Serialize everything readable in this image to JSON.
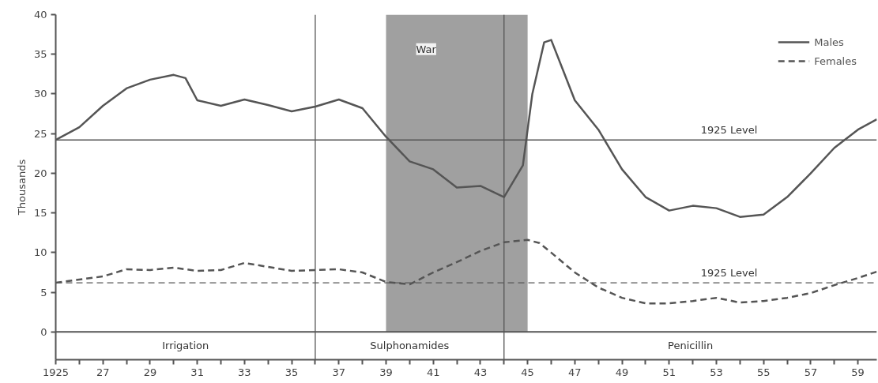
{
  "chart_data": {
    "type": "line",
    "ylabel": "Thousands",
    "xlim": [
      1925,
      1959.8
    ],
    "ylim": [
      -3.5,
      40
    ],
    "xticks": [
      1925,
      {
        "value": 1926,
        "label": null
      },
      {
        "value": 1927,
        "label": "27"
      },
      {
        "value": 1928,
        "label": null
      },
      {
        "value": 1929,
        "label": "29"
      },
      {
        "value": 1930,
        "label": null
      },
      {
        "value": 1931,
        "label": "31"
      },
      {
        "value": 1932,
        "label": null
      },
      {
        "value": 1933,
        "label": "33"
      },
      {
        "value": 1934,
        "label": null
      },
      {
        "value": 1935,
        "label": "35"
      },
      {
        "value": 1936,
        "label": null
      },
      {
        "value": 1937,
        "label": "37"
      },
      {
        "value": 1938,
        "label": null
      },
      {
        "value": 1939,
        "label": "39"
      },
      {
        "value": 1940,
        "label": null
      },
      {
        "value": 1941,
        "label": "41"
      },
      {
        "value": 1942,
        "label": null
      },
      {
        "value": 1943,
        "label": "43"
      },
      {
        "value": 1944,
        "label": null
      },
      {
        "value": 1945,
        "label": "45"
      },
      {
        "value": 1946,
        "label": null
      },
      {
        "value": 1947,
        "label": "47"
      },
      {
        "value": 1948,
        "label": null
      },
      {
        "value": 1949,
        "label": "49"
      },
      {
        "value": 1950,
        "label": null
      },
      {
        "value": 1951,
        "label": "51"
      },
      {
        "value": 1952,
        "label": null
      },
      {
        "value": 1953,
        "label": "53"
      },
      {
        "value": 1954,
        "label": null
      },
      {
        "value": 1955,
        "label": "55"
      },
      {
        "value": 1956,
        "label": null
      },
      {
        "value": 1957,
        "label": "57"
      },
      {
        "value": 1958,
        "label": null
      },
      {
        "value": 1959,
        "label": "59"
      }
    ],
    "yticks": [
      0,
      5,
      10,
      15,
      20,
      25,
      30,
      35,
      40
    ],
    "grid": false,
    "legend": "top right",
    "series": [
      {
        "name": "Males",
        "color": "#555555",
        "line_style": "solid",
        "x": [
          1925,
          1926,
          1927,
          1928,
          1929,
          1930,
          1930.5,
          1931,
          1932,
          1933,
          1934,
          1935,
          1936,
          1937,
          1938,
          1939,
          1940,
          1941,
          1942,
          1943,
          1944,
          1944.8,
          1945.2,
          1945.7,
          1946,
          1946.5,
          1947,
          1948,
          1949,
          1950,
          1951,
          1952,
          1953,
          1954,
          1955,
          1956,
          1957,
          1958,
          1959,
          1959.8
        ],
        "values": [
          24.2,
          25.8,
          28.5,
          30.7,
          31.8,
          32.4,
          32.0,
          29.2,
          28.5,
          29.3,
          28.6,
          27.8,
          28.4,
          29.3,
          28.2,
          24.6,
          21.5,
          20.5,
          18.2,
          18.4,
          17.0,
          21,
          30,
          36.5,
          36.8,
          33,
          29.2,
          25.5,
          20.5,
          17.0,
          15.3,
          15.9,
          15.6,
          14.5,
          14.8,
          17.0,
          20.0,
          23.2,
          25.5,
          26.8
        ]
      },
      {
        "name": "Females",
        "color": "#555555",
        "line_style": "dashed",
        "x": [
          1925,
          1926,
          1927,
          1928,
          1929,
          1930,
          1931,
          1932,
          1933,
          1934,
          1935,
          1936,
          1937,
          1938,
          1939,
          1940,
          1941,
          1942,
          1943,
          1944,
          1945,
          1945.5,
          1946,
          1947,
          1948,
          1949,
          1950,
          1951,
          1952,
          1953,
          1954,
          1955,
          1956,
          1957,
          1958,
          1959,
          1959.8
        ],
        "values": [
          6.2,
          6.6,
          7.0,
          7.9,
          7.8,
          8.1,
          7.7,
          7.8,
          8.7,
          8.2,
          7.7,
          7.8,
          7.9,
          7.5,
          6.3,
          6.0,
          7.5,
          8.8,
          10.2,
          11.3,
          11.6,
          11.2,
          10.0,
          7.5,
          5.6,
          4.3,
          3.6,
          3.6,
          3.9,
          4.3,
          3.7,
          3.9,
          4.3,
          4.9,
          5.9,
          6.8,
          7.6
        ]
      }
    ],
    "ref_lines": [
      {
        "axis": "y",
        "value": 24.2,
        "label": "1925 Level",
        "color": "#555555",
        "line_style": "solid"
      },
      {
        "axis": "y",
        "value": 6.2,
        "label": "1925 Level",
        "color": "#555555",
        "line_style": "dashed"
      },
      {
        "axis": "y",
        "value": 0,
        "color": "#555555",
        "line_style": "solid"
      },
      {
        "axis": "x",
        "value": 1936,
        "color": "#555555",
        "line_style": "solid"
      },
      {
        "axis": "x",
        "value": 1944,
        "color": "#555555",
        "line_style": "solid"
      }
    ],
    "bands": [
      {
        "axis": "x",
        "from": 1939,
        "to": 1945,
        "label": "War",
        "color": "#a0a0a0"
      }
    ],
    "annotations": [
      "Irrigation",
      "Sulphonamides",
      "Penicillin"
    ]
  }
}
